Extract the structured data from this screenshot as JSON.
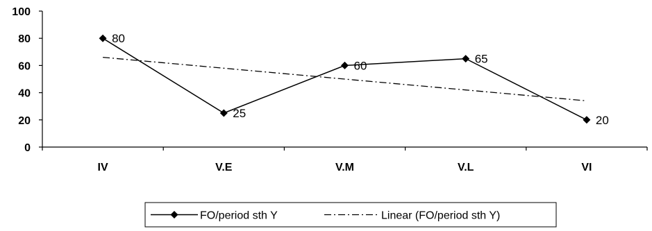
{
  "chart_data": {
    "type": "line",
    "categories": [
      "IV",
      "V.E",
      "V.M",
      "V.L",
      "VI"
    ],
    "series": [
      {
        "name": "FO/period sth Y",
        "values": [
          80,
          25,
          60,
          65,
          20
        ],
        "marker": "diamond",
        "line_style": "solid",
        "color": "#000000"
      },
      {
        "name": "Linear (FO/period sth Y)",
        "values": [
          66,
          58,
          50,
          42,
          34
        ],
        "line_style": "dash-dot",
        "color": "#000000",
        "trendline": true
      }
    ],
    "data_labels": [
      "80",
      "25",
      "60",
      "65",
      "20"
    ],
    "yticks": [
      "0",
      "20",
      "40",
      "60",
      "80",
      "100"
    ],
    "ylim": [
      0,
      100
    ],
    "grid": false,
    "legend_position": "bottom"
  }
}
